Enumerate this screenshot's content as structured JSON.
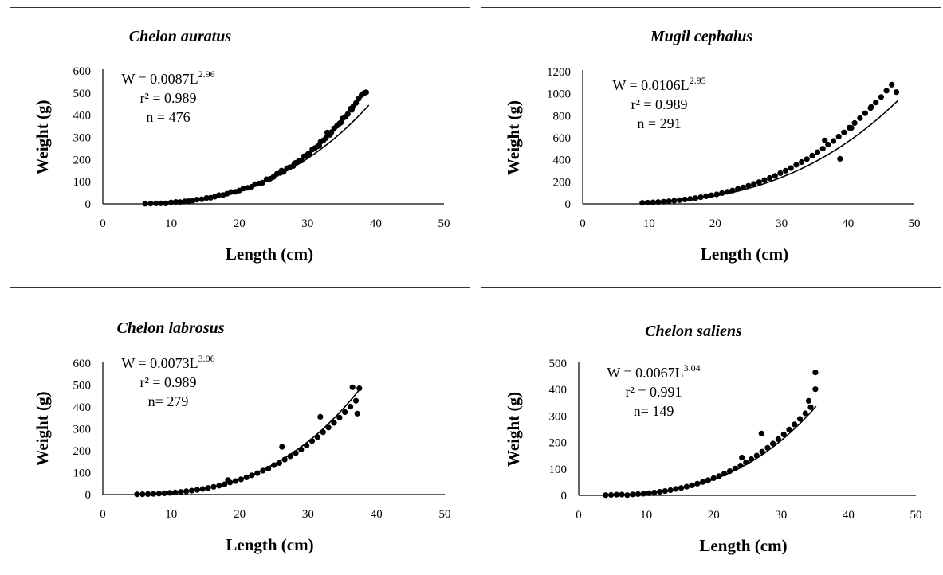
{
  "chart_data": [
    {
      "type": "scatter",
      "title": "Chelon auratus",
      "xlabel": "Length (cm)",
      "ylabel": "Weight (g)",
      "xlim": [
        0,
        50
      ],
      "ylim": [
        0,
        600
      ],
      "xticks": [
        "0",
        "10",
        "20",
        "30",
        "40",
        "50"
      ],
      "yticks": [
        "0",
        "100",
        "200",
        "300",
        "400",
        "500",
        "600"
      ],
      "annotation": {
        "prefix": "W = 0.0087L",
        "exponent": "2.96",
        "r2": "r² = 0.989",
        "n": "n = 476"
      },
      "fit": {
        "a": 0.0087,
        "b": 2.96,
        "x_range": [
          6,
          39
        ]
      },
      "points": [
        [
          6.2,
          0.8
        ],
        [
          7,
          1.1
        ],
        [
          7.8,
          2.3
        ],
        [
          8.5,
          2.6
        ],
        [
          9.2,
          2.2
        ],
        [
          10,
          6.4
        ],
        [
          10.7,
          8.5
        ],
        [
          11.3,
          8.2
        ],
        [
          12,
          11.6
        ],
        [
          12.6,
          12.2
        ],
        [
          13.2,
          15.1
        ],
        [
          13.8,
          19.3
        ],
        [
          14.5,
          21
        ],
        [
          15.2,
          26.6
        ],
        [
          15.8,
          27.8
        ],
        [
          16.4,
          32.7
        ],
        [
          17,
          39.4
        ],
        [
          17.6,
          40.1
        ],
        [
          18.2,
          45.9
        ],
        [
          18.8,
          53.4
        ],
        [
          19.4,
          54.6
        ],
        [
          20,
          60.5
        ],
        [
          20.6,
          69.5
        ],
        [
          21.2,
          72.4
        ],
        [
          21.8,
          76.8
        ],
        [
          22.3,
          88.9
        ],
        [
          22.9,
          92.4
        ],
        [
          23.4,
          95.6
        ],
        [
          24,
          110.9
        ],
        [
          24.5,
          113
        ],
        [
          25,
          121.3
        ],
        [
          25.5,
          135
        ],
        [
          26,
          139.4
        ],
        [
          26.5,
          144.6
        ],
        [
          27,
          160.8
        ],
        [
          27.4,
          164.8
        ],
        [
          27.9,
          171
        ],
        [
          28.3,
          185.9
        ],
        [
          28.7,
          192.7
        ],
        [
          29.1,
          195.5
        ],
        [
          29.5,
          214.7
        ],
        [
          29.9,
          220.2
        ],
        [
          30.3,
          226.6
        ],
        [
          30.7,
          245.4
        ],
        [
          31.1,
          252.1
        ],
        [
          31.5,
          259.9
        ],
        [
          31.9,
          279.8
        ],
        [
          32.3,
          285.9
        ],
        [
          32.7,
          296.7
        ],
        [
          33.1,
          314.9
        ],
        [
          33.5,
          323.6
        ],
        [
          33.9,
          340.5
        ],
        [
          34.3,
          352.1
        ],
        [
          34.7,
          363.2
        ],
        [
          35.1,
          384.5
        ],
        [
          35.5,
          391.9
        ],
        [
          35.9,
          405.2
        ],
        [
          36.3,
          429
        ],
        [
          36.7,
          440.4
        ],
        [
          37.1,
          455.1
        ],
        [
          37.5,
          475.1
        ],
        [
          37.9,
          490.4
        ],
        [
          38.3,
          500
        ],
        [
          38.6,
          503.2
        ],
        [
          26.2,
          150.1
        ],
        [
          28.1,
          182.4
        ],
        [
          30.1,
          225.8
        ],
        [
          31.7,
          262.5
        ],
        [
          33.3,
          311.5
        ],
        [
          34.9,
          367.2
        ],
        [
          36.5,
          424.2
        ],
        [
          32.9,
          321.8
        ]
      ]
    },
    {
      "type": "scatter",
      "title": "Mugil cephalus",
      "xlabel": "Length (cm)",
      "ylabel": "Weight (g)",
      "xlim": [
        0,
        50
      ],
      "ylim": [
        0,
        1200
      ],
      "xticks": [
        "0",
        "10",
        "20",
        "30",
        "40",
        "50"
      ],
      "yticks": [
        "0",
        "200",
        "400",
        "600",
        "800",
        "1000",
        "1200"
      ],
      "annotation": {
        "prefix": "W = 0.0106L",
        "exponent": "2.95",
        "r2": "r² = 0.989",
        "n": "n = 291"
      },
      "fit": {
        "a": 0.0106,
        "b": 2.95,
        "x_range": [
          9,
          47.5
        ]
      },
      "points": [
        [
          9,
          9.3
        ],
        [
          9.8,
          10.5
        ],
        [
          10.6,
          14
        ],
        [
          11.4,
          16.5
        ],
        [
          12.2,
          20.5
        ],
        [
          13,
          24.2
        ],
        [
          13.8,
          29.2
        ],
        [
          14.6,
          34.3
        ],
        [
          15.4,
          39.6
        ],
        [
          16.2,
          45.5
        ],
        [
          17,
          53
        ],
        [
          17.8,
          60.5
        ],
        [
          18.6,
          69.2
        ],
        [
          19.4,
          78
        ],
        [
          20.2,
          87.1
        ],
        [
          21,
          98.4
        ],
        [
          21.8,
          110.1
        ],
        [
          22.6,
          121.3
        ],
        [
          23.4,
          135.6
        ],
        [
          24.2,
          149.2
        ],
        [
          25,
          164.5
        ],
        [
          25.8,
          180.5
        ],
        [
          26.6,
          197.2
        ],
        [
          27.4,
          216.5
        ],
        [
          28.2,
          234.6
        ],
        [
          29,
          253.9
        ],
        [
          29.8,
          278.8
        ],
        [
          30.6,
          301.3
        ],
        [
          31.4,
          325.4
        ],
        [
          32.2,
          354
        ],
        [
          33,
          379.3
        ],
        [
          33.8,
          406.3
        ],
        [
          34.6,
          438.3
        ],
        [
          35.4,
          468.8
        ],
        [
          36.2,
          500.8
        ],
        [
          37,
          537.7
        ],
        [
          37.8,
          571.1
        ],
        [
          38.6,
          610.6
        ],
        [
          39.4,
          648.9
        ],
        [
          40.2,
          692
        ],
        [
          41,
          734.6
        ],
        [
          41.8,
          778.2
        ],
        [
          42.6,
          822.6
        ],
        [
          43.4,
          870.7
        ],
        [
          44.2,
          920.9
        ],
        [
          45,
          970
        ],
        [
          45.8,
          1027.2
        ],
        [
          46.6,
          1082
        ],
        [
          47.3,
          1014.5
        ],
        [
          38.8,
          409.5
        ],
        [
          36.5,
          576
        ],
        [
          40.5,
          690
        ],
        [
          43.5,
          880
        ]
      ]
    },
    {
      "type": "scatter",
      "title": "Chelon labrosus",
      "xlabel": "Length (cm)",
      "ylabel": "Weight (g)",
      "xlim": [
        0,
        50
      ],
      "ylim": [
        0,
        600
      ],
      "xticks": [
        "0",
        "10",
        "20",
        "30",
        "40",
        "50"
      ],
      "yticks": [
        "0",
        "100",
        "200",
        "300",
        "400",
        "500",
        "600"
      ],
      "annotation": {
        "prefix": "W = 0.0073L",
        "exponent": "3.06",
        "r2": "r² = 0.989",
        "n": "n= 279"
      },
      "fit": {
        "a": 0.0073,
        "b": 3.06,
        "x_range": [
          5,
          37.5
        ]
      },
      "points": [
        [
          5,
          1
        ],
        [
          5.8,
          1.6
        ],
        [
          6.6,
          2.3
        ],
        [
          7.4,
          3.2
        ],
        [
          8.2,
          4.4
        ],
        [
          9,
          5.8
        ],
        [
          9.8,
          7.6
        ],
        [
          10.6,
          9.6
        ],
        [
          11.4,
          12
        ],
        [
          12.2,
          14.8
        ],
        [
          13,
          17.9
        ],
        [
          13.8,
          21.5
        ],
        [
          14.6,
          25.6
        ],
        [
          15.4,
          30.1
        ],
        [
          16.2,
          35.2
        ],
        [
          17,
          40.7
        ],
        [
          17.8,
          46.9
        ],
        [
          18.3,
          66
        ],
        [
          18.6,
          55.1
        ],
        [
          19.4,
          61.5
        ],
        [
          20.2,
          69.6
        ],
        [
          21,
          78.4
        ],
        [
          21.8,
          87.9
        ],
        [
          22.6,
          98
        ],
        [
          23.4,
          109
        ],
        [
          24.2,
          118.6
        ],
        [
          25,
          134.2
        ],
        [
          25.8,
          144.1
        ],
        [
          26.6,
          159.5
        ],
        [
          27.4,
          174.8
        ],
        [
          28.2,
          189.3
        ],
        [
          29,
          205.6
        ],
        [
          29.8,
          223.5
        ],
        [
          30.6,
          244.8
        ],
        [
          31.4,
          262.3
        ],
        [
          32.2,
          284.6
        ],
        [
          33,
          306.3
        ],
        [
          33.8,
          327.7
        ],
        [
          34.6,
          351.5
        ],
        [
          35.4,
          376.7
        ],
        [
          36.2,
          401.5
        ],
        [
          37,
          428.5
        ],
        [
          37.5,
          485
        ],
        [
          36.5,
          490
        ],
        [
          37.2,
          370
        ],
        [
          31.8,
          355
        ],
        [
          26.2,
          218
        ]
      ]
    },
    {
      "type": "scatter",
      "title": "Chelon saliens",
      "xlabel": "Length (cm)",
      "ylabel": "Weight (g)",
      "xlim": [
        0,
        50
      ],
      "ylim": [
        0,
        500
      ],
      "xticks": [
        "0",
        "10",
        "20",
        "30",
        "40",
        "50"
      ],
      "yticks": [
        "0",
        "100",
        "200",
        "300",
        "400",
        "500"
      ],
      "annotation": {
        "prefix": "W = 0.0067L",
        "exponent": "3.04",
        "r2": "r² = 0.991",
        "n": "n= 149"
      },
      "fit": {
        "a": 0.0067,
        "b": 3.04,
        "x_range": [
          4,
          35.2
        ]
      },
      "points": [
        [
          4,
          1
        ],
        [
          4.8,
          1.4
        ],
        [
          5.6,
          2.7
        ],
        [
          6.4,
          3.1
        ],
        [
          7.2,
          1
        ],
        [
          8,
          3.7
        ],
        [
          8.8,
          4.7
        ],
        [
          9.6,
          6.4
        ],
        [
          10.4,
          8.2
        ],
        [
          11.2,
          10.6
        ],
        [
          12,
          13.3
        ],
        [
          12.8,
          16.3
        ],
        [
          13.6,
          19.6
        ],
        [
          14.4,
          24
        ],
        [
          15.2,
          28.1
        ],
        [
          16,
          32.8
        ],
        [
          16.8,
          38
        ],
        [
          17.6,
          44.3
        ],
        [
          18.4,
          50.6
        ],
        [
          19.2,
          57.5
        ],
        [
          20,
          65.1
        ],
        [
          20.8,
          73
        ],
        [
          21.6,
          82.2
        ],
        [
          22.4,
          91.6
        ],
        [
          23.2,
          101.4
        ],
        [
          24,
          112.8
        ],
        [
          24.2,
          143
        ],
        [
          24.8,
          124.7
        ],
        [
          25.6,
          137.1
        ],
        [
          26.4,
          150.3
        ],
        [
          27.2,
          165.2
        ],
        [
          28,
          179.8
        ],
        [
          28.8,
          195.8
        ],
        [
          29.6,
          212.8
        ],
        [
          30.4,
          230.7
        ],
        [
          31.2,
          248.8
        ],
        [
          32,
          268.5
        ],
        [
          32.8,
          289.2
        ],
        [
          33.6,
          310.1
        ],
        [
          34.4,
          333.3
        ],
        [
          35.1,
          401.4
        ],
        [
          35.1,
          465
        ],
        [
          34.1,
          357.5
        ],
        [
          27.1,
          233.9
        ]
      ]
    }
  ]
}
